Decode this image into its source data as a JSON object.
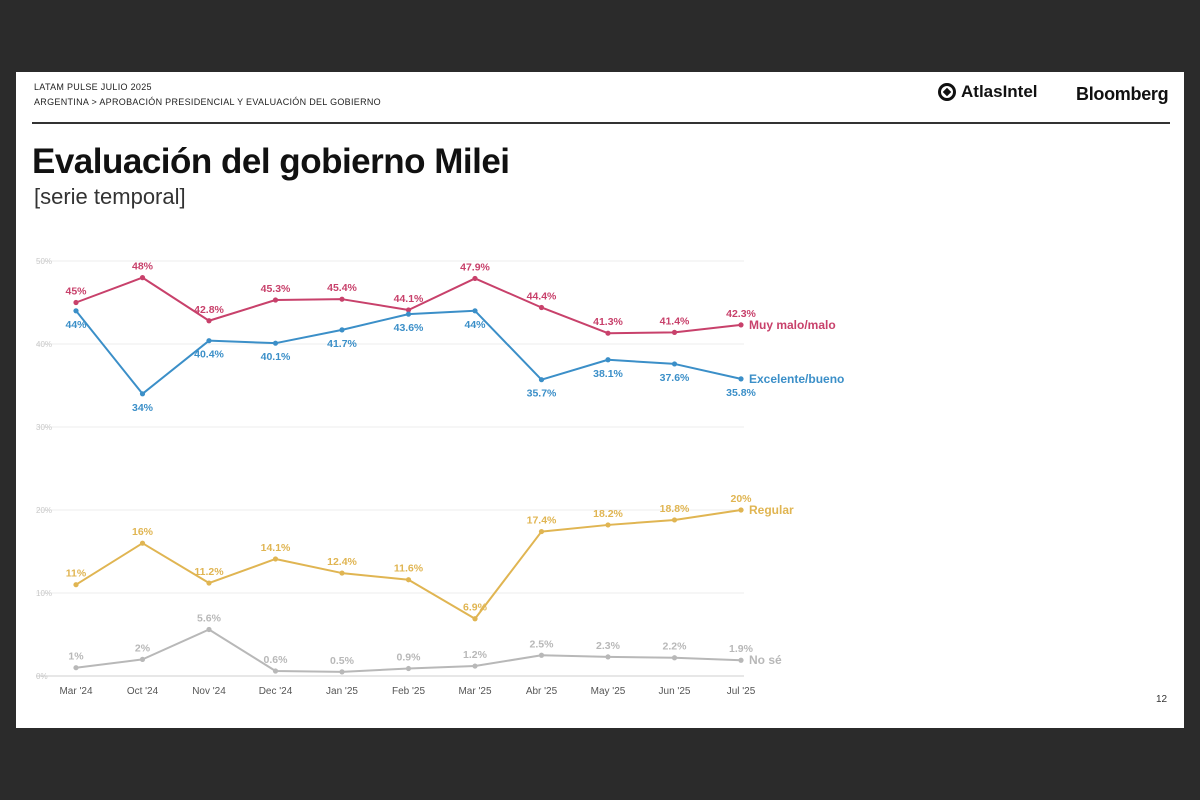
{
  "header": {
    "line1": "LATAM PULSE JULIO 2025",
    "line2": "ARGENTINA > APROBACIÓN PRESIDENCIAL Y EVALUACIÓN DEL GOBIERNO",
    "logo_atlas": "AtlasIntel",
    "logo_bloomberg": "Bloomberg"
  },
  "page_number": "12",
  "chart_data": {
    "type": "line",
    "title": "Evaluación del gobierno Milei",
    "subtitle": "[serie temporal]",
    "categories": [
      "Mar '24",
      "Oct '24",
      "Nov '24",
      "Dec '24",
      "Jan '25",
      "Feb '25",
      "Mar '25",
      "Abr '25",
      "May '25",
      "Jun '25",
      "Jul '25"
    ],
    "ylim": [
      0,
      50
    ],
    "yticks": [
      0,
      10,
      20,
      30,
      40,
      50
    ],
    "ytick_labels": [
      "0%",
      "10%",
      "20%",
      "30%",
      "40%",
      "50%"
    ],
    "grid": true,
    "series": [
      {
        "name": "Muy malo/malo",
        "color": "#c8416b",
        "values": [
          45,
          48,
          42.8,
          45.3,
          45.4,
          44.1,
          47.9,
          44.4,
          41.3,
          41.4,
          42.3
        ],
        "labels": [
          "45%",
          "48%",
          "42.8%",
          "45.3%",
          "45.4%",
          "44.1%",
          "47.9%",
          "44.4%",
          "41.3%",
          "41.4%",
          "42.3%"
        ],
        "label_pos": "above"
      },
      {
        "name": "Excelente/bueno",
        "color": "#3b8fc8",
        "values": [
          44,
          34,
          40.4,
          40.1,
          41.7,
          43.6,
          44,
          35.7,
          38.1,
          37.6,
          35.8
        ],
        "labels": [
          "44%",
          "34%",
          "40.4%",
          "40.1%",
          "41.7%",
          "43.6%",
          "44%",
          "35.7%",
          "38.1%",
          "37.6%",
          "35.8%"
        ],
        "label_pos": "below"
      },
      {
        "name": "Regular",
        "color": "#e0b552",
        "values": [
          11,
          16,
          11.2,
          14.1,
          12.4,
          11.6,
          6.9,
          17.4,
          18.2,
          18.8,
          20
        ],
        "labels": [
          "11%",
          "16%",
          "11.2%",
          "14.1%",
          "12.4%",
          "11.6%",
          "6.9%",
          "17.4%",
          "18.2%",
          "18.8%",
          "20%"
        ],
        "label_pos": "above"
      },
      {
        "name": "No sé",
        "color": "#b8b8b8",
        "values": [
          1,
          2,
          5.6,
          0.6,
          0.5,
          0.9,
          1.2,
          2.5,
          2.3,
          2.2,
          1.9
        ],
        "labels": [
          "1%",
          "2%",
          "5.6%",
          "0.6%",
          "0.5%",
          "0.9%",
          "1.2%",
          "2.5%",
          "2.3%",
          "2.2%",
          "1.9%"
        ],
        "label_pos": "above"
      }
    ]
  }
}
